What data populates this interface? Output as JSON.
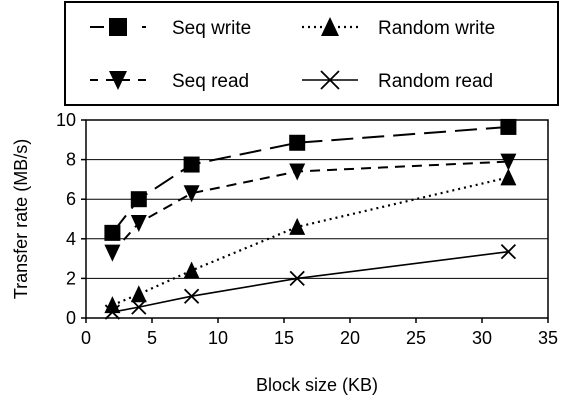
{
  "chart_data": {
    "type": "line",
    "xlabel": "Block size (KB)",
    "ylabel": "Transfer rate (MB/s)",
    "xlim": [
      0,
      35
    ],
    "ylim": [
      0,
      10
    ],
    "xticks": [
      "0",
      "5",
      "10",
      "15",
      "20",
      "25",
      "30",
      "35"
    ],
    "yticks": [
      "0",
      "2",
      "4",
      "6",
      "8",
      "10"
    ],
    "grid": "horizontal",
    "legend_placement": "top (above plot, boxed)",
    "series": [
      {
        "name": "Seq write",
        "marker": "square",
        "line_style": "long-dash",
        "x": [
          2,
          4,
          8,
          16,
          32
        ],
        "y": [
          4.3,
          6.0,
          7.75,
          8.85,
          9.65
        ]
      },
      {
        "name": "Random write",
        "marker": "triangle-up",
        "line_style": "dotted",
        "x": [
          2,
          4,
          8,
          16,
          32
        ],
        "y": [
          0.65,
          1.2,
          2.4,
          4.6,
          7.1
        ]
      },
      {
        "name": "Seq read",
        "marker": "triangle-down",
        "line_style": "short-dash",
        "x": [
          2,
          4,
          8,
          16,
          32
        ],
        "y": [
          3.3,
          4.8,
          6.3,
          7.4,
          7.9
        ]
      },
      {
        "name": "Random read",
        "marker": "x",
        "line_style": "solid",
        "x": [
          2,
          4,
          8,
          16,
          32
        ],
        "y": [
          0.3,
          0.55,
          1.1,
          2.0,
          3.35
        ]
      }
    ]
  }
}
